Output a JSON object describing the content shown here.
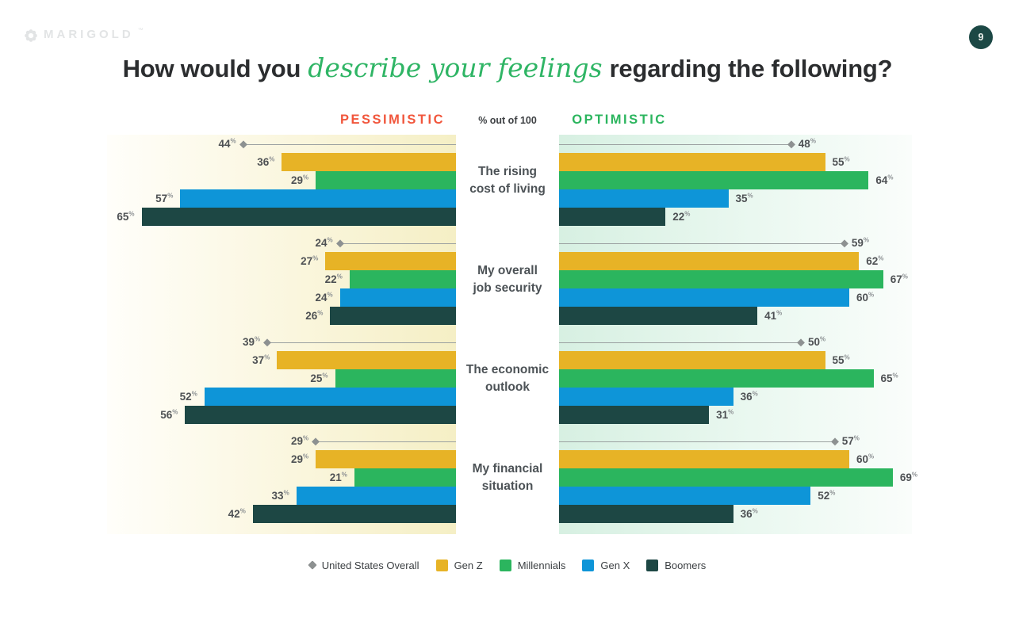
{
  "logo": {
    "brand": "MARIGOLD",
    "trademark": "™"
  },
  "page_number": "9",
  "title": {
    "prefix": "How would you",
    "highlight": "describe your feelings",
    "suffix": "regarding the following?"
  },
  "header": {
    "pessimistic": "PESSIMISTIC",
    "note": "% out of 100",
    "optimistic": "OPTIMISTIC"
  },
  "colors": {
    "pessimistic_label": "#f1563c",
    "optimistic_label": "#2bb55e",
    "title_highlight": "#2fb565",
    "page_badge": "#1c4845",
    "us_overall_marker": "#8d9191"
  },
  "chart_data": {
    "type": "bar",
    "variant": "diverging-horizontal-grouped",
    "unit": "%",
    "axis_note": "% out of 100",
    "xlim": [
      0,
      72
    ],
    "grid": false,
    "legend_position": "bottom",
    "sides": [
      "pessimistic",
      "optimistic"
    ],
    "series": [
      {
        "name": "United States Overall",
        "marker": "diamond-line",
        "color": "#8d9191"
      },
      {
        "name": "Gen Z",
        "marker": "square",
        "color": "#e7b326"
      },
      {
        "name": "Millennials",
        "marker": "square",
        "color": "#2bb55e"
      },
      {
        "name": "Gen X",
        "marker": "square",
        "color": "#0e95d8"
      },
      {
        "name": "Boomers",
        "marker": "square",
        "color": "#1d4744"
      }
    ],
    "groups": [
      {
        "category": "The rising cost of living",
        "category_lines": [
          "The rising",
          "cost of living"
        ],
        "pessimistic": [
          44,
          36,
          29,
          57,
          65
        ],
        "optimistic": [
          48,
          55,
          64,
          35,
          22
        ]
      },
      {
        "category": "My overall job security",
        "category_lines": [
          "My overall",
          "job security"
        ],
        "pessimistic": [
          24,
          27,
          22,
          24,
          26
        ],
        "optimistic": [
          59,
          62,
          67,
          60,
          41
        ]
      },
      {
        "category": "The economic outlook",
        "category_lines": [
          "The economic",
          "outlook"
        ],
        "pessimistic": [
          39,
          37,
          25,
          52,
          56
        ],
        "optimistic": [
          50,
          55,
          65,
          36,
          31
        ]
      },
      {
        "category": "My financial situation",
        "category_lines": [
          "My financial",
          "situation"
        ],
        "pessimistic": [
          29,
          29,
          21,
          33,
          42
        ],
        "optimistic": [
          57,
          60,
          69,
          52,
          36
        ]
      }
    ]
  }
}
